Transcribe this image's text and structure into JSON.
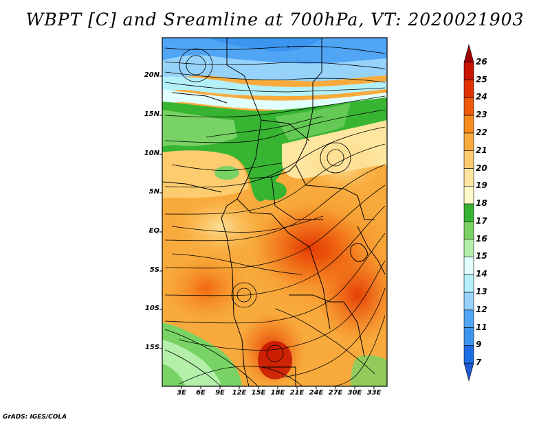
{
  "title": "WBPT [C] and Sreamline at 700hPa, VT: 2020021903",
  "credit": "GrADS: IGES/COLA",
  "map": {
    "lat_labels": [
      "20N",
      "15N",
      "10N",
      "5N",
      "EQ",
      "5S",
      "10S",
      "15S"
    ],
    "lon_labels": [
      "3E",
      "6E",
      "9E",
      "12E",
      "15E",
      "18E",
      "21E",
      "24E",
      "27E",
      "30E",
      "33E"
    ]
  },
  "colorbar": {
    "labels": [
      "26",
      "25",
      "24",
      "23",
      "22",
      "21",
      "20",
      "19",
      "18",
      "17",
      "16",
      "15",
      "14",
      "13",
      "12",
      "11",
      "9",
      "7"
    ],
    "colors": [
      "#a00000",
      "#c81400",
      "#e13200",
      "#f05a0a",
      "#f58c1e",
      "#f8aa3c",
      "#fccc6e",
      "#fee6a0",
      "#fff8c8",
      "#37b432",
      "#78d264",
      "#b4f0aa",
      "#e1ffff",
      "#b4f0fa",
      "#96d2fa",
      "#50a5f5",
      "#3c96f0",
      "#1e6ee6",
      "#1e5ad2"
    ]
  }
}
